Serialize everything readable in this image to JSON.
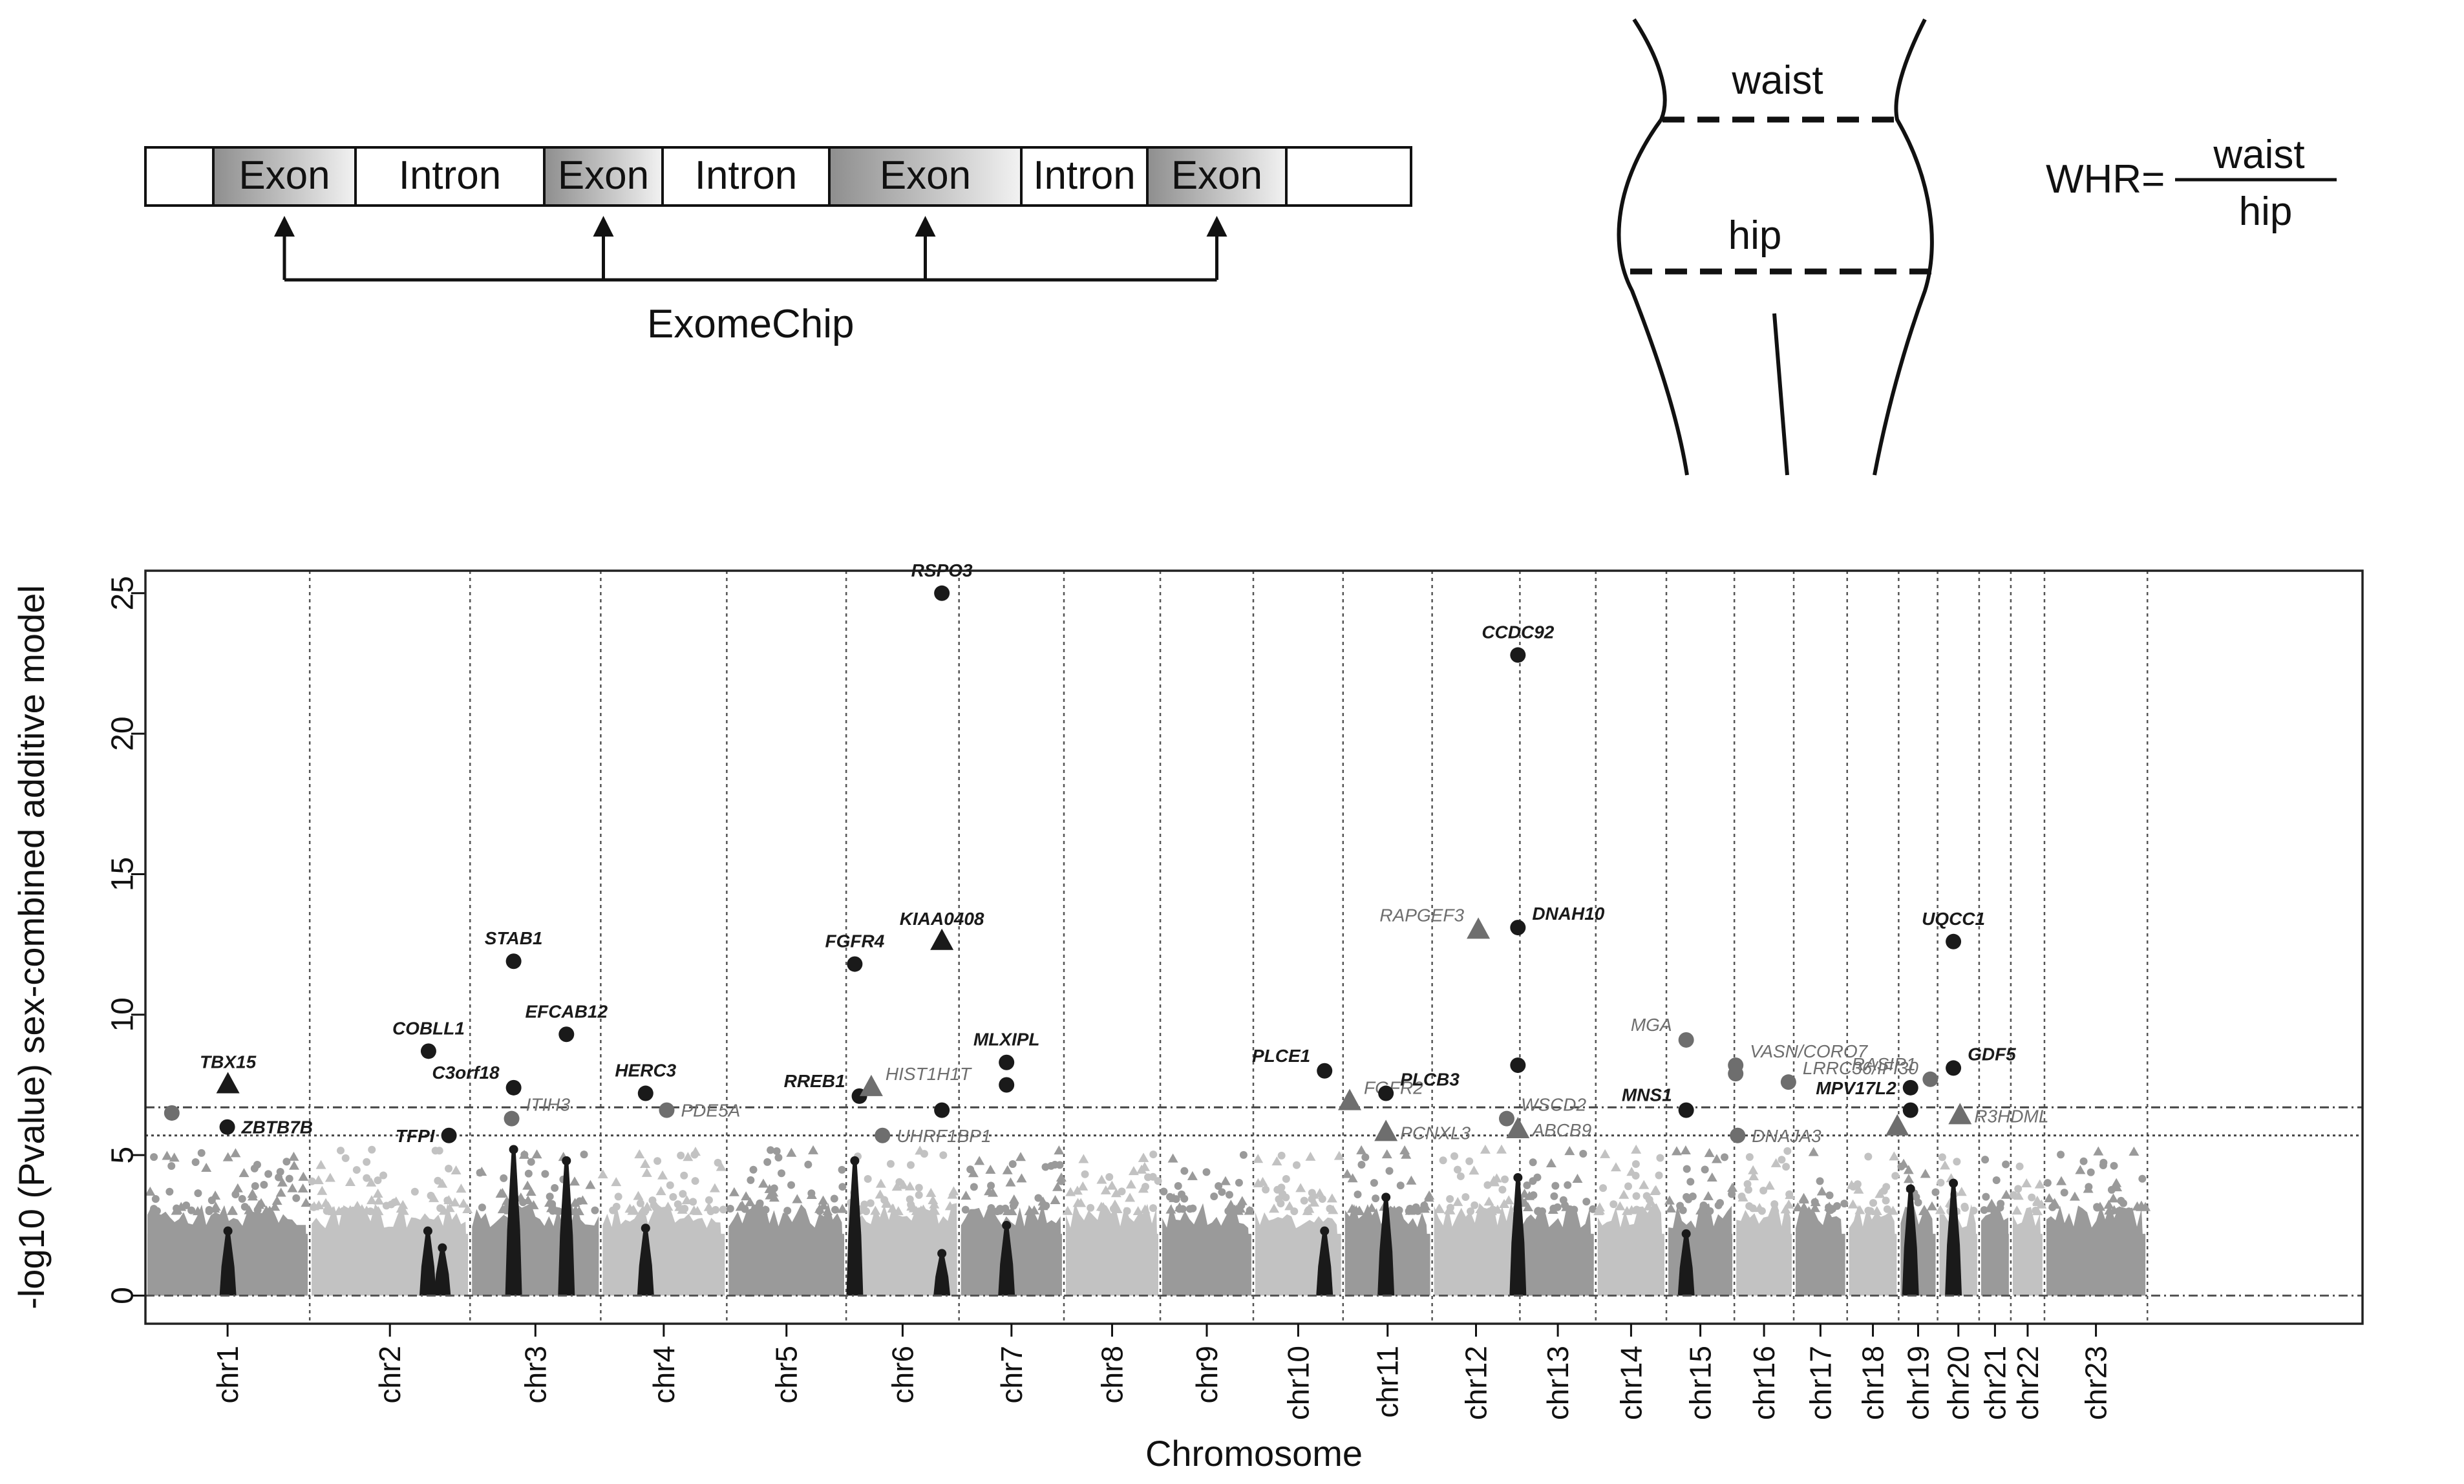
{
  "gene_diagram": {
    "segments": [
      {
        "type": "flank",
        "label": ""
      },
      {
        "type": "exon",
        "label": "Exon"
      },
      {
        "type": "intron",
        "label": "Intron"
      },
      {
        "type": "exon",
        "label": "Exon"
      },
      {
        "type": "intron",
        "label": "Intron"
      },
      {
        "type": "exon",
        "label": "Exon"
      },
      {
        "type": "intron",
        "label": "Intron"
      },
      {
        "type": "exon",
        "label": "Exon"
      },
      {
        "type": "flank",
        "label": ""
      }
    ],
    "chip_label": "ExomeChip"
  },
  "body_diagram": {
    "waist_label": "waist",
    "hip_label": "hip",
    "formula_lhs": "WHR=",
    "formula_numerator": "waist",
    "formula_denominator": "hip"
  },
  "chart_data": {
    "type": "scatter",
    "subtype": "manhattan",
    "title": "",
    "xlabel": "Chromosome",
    "ylabel": "-log10 (Pvalue) sex-combined additive model",
    "ylim": [
      -1,
      25.8
    ],
    "yticks": [
      0,
      5,
      10,
      15,
      20,
      25
    ],
    "xlim": [
      0,
      3360
    ],
    "thresholds": [
      6.7,
      5.7
    ],
    "colors": {
      "dark": "#1a1a1a",
      "grey": "#6e6e6e",
      "bg_dark": "#9a9a9a",
      "bg_light": "#c2c2c2"
    },
    "chromosomes": [
      {
        "name": "chr1",
        "start": 0,
        "end": 249
      },
      {
        "name": "chr2",
        "start": 249,
        "end": 492
      },
      {
        "name": "chr3",
        "start": 492,
        "end": 690
      },
      {
        "name": "chr4",
        "start": 690,
        "end": 881
      },
      {
        "name": "chr5",
        "start": 881,
        "end": 1062
      },
      {
        "name": "chr6",
        "start": 1062,
        "end": 1233
      },
      {
        "name": "chr7",
        "start": 1233,
        "end": 1392
      },
      {
        "name": "chr8",
        "start": 1392,
        "end": 1538
      },
      {
        "name": "chr9",
        "start": 1538,
        "end": 1679
      },
      {
        "name": "chr10",
        "start": 1679,
        "end": 1815
      },
      {
        "name": "chr11",
        "start": 1815,
        "end": 1950
      },
      {
        "name": "chr12",
        "start": 1950,
        "end": 2083
      },
      {
        "name": "chr13",
        "start": 2083,
        "end": 2198
      },
      {
        "name": "chr14",
        "start": 2198,
        "end": 2305
      },
      {
        "name": "chr15",
        "start": 2305,
        "end": 2408
      },
      {
        "name": "chr16",
        "start": 2408,
        "end": 2498
      },
      {
        "name": "chr17",
        "start": 2498,
        "end": 2579
      },
      {
        "name": "chr18",
        "start": 2579,
        "end": 2657
      },
      {
        "name": "chr19",
        "start": 2657,
        "end": 2716
      },
      {
        "name": "chr20",
        "start": 2716,
        "end": 2779
      },
      {
        "name": "chr21",
        "start": 2779,
        "end": 2827
      },
      {
        "name": "chr22",
        "start": 2827,
        "end": 2878
      },
      {
        "name": "chr23",
        "start": 2878,
        "end": 3034
      }
    ],
    "points": [
      {
        "gene": "TBX15",
        "x": 125,
        "y": 7.5,
        "shape": "triangle",
        "tone": "dark",
        "label_pos": "above"
      },
      {
        "gene": "ZBTB7B",
        "x": 124,
        "y": 6.0,
        "shape": "circle",
        "tone": "dark",
        "label_pos": "right"
      },
      {
        "gene": "",
        "x": 40,
        "y": 6.5,
        "shape": "circle",
        "tone": "grey",
        "label_pos": "none"
      },
      {
        "gene": "COBLL1",
        "x": 429,
        "y": 8.7,
        "shape": "circle",
        "tone": "dark",
        "label_pos": "above"
      },
      {
        "gene": "TFPI",
        "x": 460,
        "y": 5.7,
        "shape": "circle",
        "tone": "dark",
        "label_pos": "left"
      },
      {
        "gene": "STAB1",
        "x": 558,
        "y": 11.9,
        "shape": "circle",
        "tone": "dark",
        "label_pos": "above"
      },
      {
        "gene": "C3orf18",
        "x": 558,
        "y": 7.4,
        "shape": "circle",
        "tone": "dark",
        "label_pos": "left-up"
      },
      {
        "gene": "ITIH3",
        "x": 555,
        "y": 6.3,
        "shape": "circle",
        "tone": "grey",
        "label_pos": "right-up"
      },
      {
        "gene": "EFCAB12",
        "x": 638,
        "y": 9.3,
        "shape": "circle",
        "tone": "dark",
        "label_pos": "above"
      },
      {
        "gene": "HERC3",
        "x": 758,
        "y": 7.2,
        "shape": "circle",
        "tone": "dark",
        "label_pos": "above"
      },
      {
        "gene": "PDE5A",
        "x": 790,
        "y": 6.6,
        "shape": "circle",
        "tone": "grey",
        "label_pos": "right"
      },
      {
        "gene": "RREB1",
        "x": 1082,
        "y": 7.1,
        "shape": "circle",
        "tone": "dark",
        "label_pos": "left-up"
      },
      {
        "gene": "HIST1H1T",
        "x": 1100,
        "y": 7.4,
        "shape": "triangle",
        "tone": "grey",
        "label_pos": "right-up"
      },
      {
        "gene": "UHRF1BP1",
        "x": 1117,
        "y": 5.7,
        "shape": "circle",
        "tone": "grey",
        "label_pos": "right"
      },
      {
        "gene": "FGFR4",
        "x": 1075,
        "y": 11.8,
        "shape": "circle",
        "tone": "dark",
        "label_pos": "above"
      },
      {
        "gene": "RSPO3",
        "x": 1207,
        "y": 25.0,
        "shape": "circle",
        "tone": "dark",
        "label_pos": "above"
      },
      {
        "gene": "KIAA0408",
        "x": 1207,
        "y": 12.6,
        "shape": "triangle",
        "tone": "dark",
        "label_pos": "above"
      },
      {
        "gene": "",
        "x": 1207,
        "y": 6.6,
        "shape": "circle",
        "tone": "dark",
        "label_pos": "none"
      },
      {
        "gene": "MLXIPL",
        "x": 1305,
        "y": 8.3,
        "shape": "circle",
        "tone": "dark",
        "label_pos": "above"
      },
      {
        "gene": "",
        "x": 1305,
        "y": 7.5,
        "shape": "circle",
        "tone": "dark",
        "label_pos": "none"
      },
      {
        "gene": "PLCE1",
        "x": 1787,
        "y": 8.0,
        "shape": "circle",
        "tone": "dark",
        "label_pos": "left-up"
      },
      {
        "gene": "FGFR2",
        "x": 1825,
        "y": 6.9,
        "shape": "triangle",
        "tone": "grey",
        "label_pos": "right-up"
      },
      {
        "gene": "PLCB3",
        "x": 1880,
        "y": 7.2,
        "shape": "circle",
        "tone": "dark",
        "label_pos": "right-up"
      },
      {
        "gene": "PCNXL3",
        "x": 1880,
        "y": 5.8,
        "shape": "triangle",
        "tone": "grey",
        "label_pos": "right"
      },
      {
        "gene": "RAPGEF3",
        "x": 2020,
        "y": 13.0,
        "shape": "triangle",
        "tone": "grey",
        "label_pos": "left-up"
      },
      {
        "gene": "CCDC92",
        "x": 2080,
        "y": 22.8,
        "shape": "circle",
        "tone": "dark",
        "label_pos": "above"
      },
      {
        "gene": "DNAH10",
        "x": 2080,
        "y": 13.1,
        "shape": "circle",
        "tone": "dark",
        "label_pos": "right-up"
      },
      {
        "gene": "",
        "x": 2080,
        "y": 8.2,
        "shape": "circle",
        "tone": "dark",
        "label_pos": "none"
      },
      {
        "gene": "WSCD2",
        "x": 2063,
        "y": 6.3,
        "shape": "circle",
        "tone": "grey",
        "label_pos": "right-up"
      },
      {
        "gene": "ABCB9",
        "x": 2080,
        "y": 5.9,
        "shape": "triangle",
        "tone": "grey",
        "label_pos": "right"
      },
      {
        "gene": "MGA",
        "x": 2335,
        "y": 9.1,
        "shape": "circle",
        "tone": "grey",
        "label_pos": "left-up"
      },
      {
        "gene": "MNS1",
        "x": 2335,
        "y": 6.6,
        "shape": "circle",
        "tone": "dark",
        "label_pos": "left-up"
      },
      {
        "gene": "VASN/CORO7",
        "x": 2410,
        "y": 8.2,
        "shape": "circle",
        "tone": "grey",
        "label_pos": "right-up"
      },
      {
        "gene": "",
        "x": 2410,
        "y": 7.9,
        "shape": "circle",
        "tone": "grey",
        "label_pos": "none"
      },
      {
        "gene": "DNAJA3",
        "x": 2413,
        "y": 5.7,
        "shape": "circle",
        "tone": "grey",
        "label_pos": "right"
      },
      {
        "gene": "LRRC36/IFI30",
        "x": 2490,
        "y": 7.6,
        "shape": "circle",
        "tone": "grey",
        "label_pos": "right-up"
      },
      {
        "gene": "MPV17L2",
        "x": 2675,
        "y": 7.4,
        "shape": "circle",
        "tone": "dark",
        "label_pos": "left"
      },
      {
        "gene": "",
        "x": 2675,
        "y": 6.6,
        "shape": "circle",
        "tone": "dark",
        "label_pos": "none"
      },
      {
        "gene": "",
        "x": 2655,
        "y": 6.0,
        "shape": "triangle",
        "tone": "grey",
        "label_pos": "none"
      },
      {
        "gene": "RASIP1",
        "x": 2705,
        "y": 7.7,
        "shape": "circle",
        "tone": "grey",
        "label_pos": "left-up"
      },
      {
        "gene": "UQCC1",
        "x": 2740,
        "y": 12.6,
        "shape": "circle",
        "tone": "dark",
        "label_pos": "above"
      },
      {
        "gene": "GDF5",
        "x": 2740,
        "y": 8.1,
        "shape": "circle",
        "tone": "dark",
        "label_pos": "right-up"
      },
      {
        "gene": "R3HDML",
        "x": 2750,
        "y": 6.4,
        "shape": "triangle",
        "tone": "grey",
        "label_pos": "right"
      }
    ],
    "signal_peaks": [
      {
        "x": 125,
        "y": 2.3
      },
      {
        "x": 428,
        "y": 2.3
      },
      {
        "x": 450,
        "y": 1.7
      },
      {
        "x": 558,
        "y": 5.2
      },
      {
        "x": 638,
        "y": 4.8
      },
      {
        "x": 758,
        "y": 2.4
      },
      {
        "x": 1075,
        "y": 4.8
      },
      {
        "x": 1207,
        "y": 1.5
      },
      {
        "x": 1305,
        "y": 2.5
      },
      {
        "x": 1787,
        "y": 2.3
      },
      {
        "x": 1880,
        "y": 3.5
      },
      {
        "x": 2080,
        "y": 4.2
      },
      {
        "x": 2335,
        "y": 2.2
      },
      {
        "x": 2675,
        "y": 3.8
      },
      {
        "x": 2740,
        "y": 4.0
      }
    ]
  }
}
